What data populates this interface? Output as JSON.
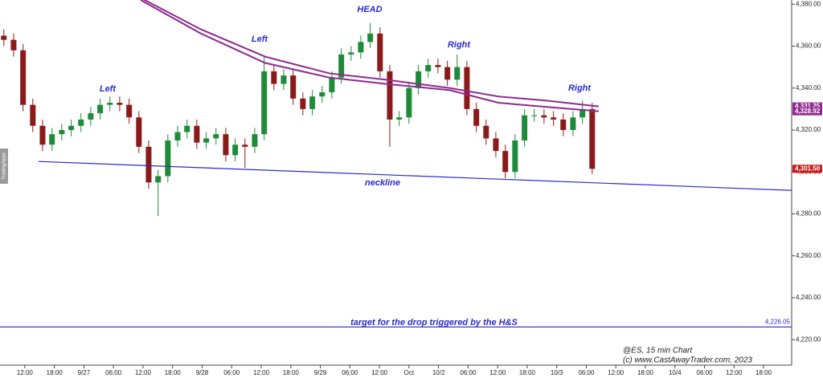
{
  "chart_data": {
    "type": "candlestick",
    "up_color": "#1f8a3a",
    "down_color": "#8b1a1a",
    "xlim": [
      -0.84,
      25.95
    ],
    "ylim": [
      4209,
      4382
    ],
    "xticks": [
      {
        "value": 0,
        "label": "12:00"
      },
      {
        "value": 1,
        "label": "18:00"
      },
      {
        "value": 2,
        "label": "9/27"
      },
      {
        "value": 3,
        "label": "06:00"
      },
      {
        "value": 4,
        "label": "12:00"
      },
      {
        "value": 5,
        "label": "18:00"
      },
      {
        "value": 6,
        "label": "9/28"
      },
      {
        "value": 7,
        "label": "06:00"
      },
      {
        "value": 8,
        "label": "12:00"
      },
      {
        "value": 9,
        "label": "18:00"
      },
      {
        "value": 10,
        "label": "9/29"
      },
      {
        "value": 11,
        "label": "06:00"
      },
      {
        "value": 12,
        "label": "12:00"
      },
      {
        "value": 13,
        "label": "Oct"
      },
      {
        "value": 14,
        "label": "10/2"
      },
      {
        "value": 15,
        "label": "06:00"
      },
      {
        "value": 16,
        "label": "12:00"
      },
      {
        "value": 17,
        "label": "18:00"
      },
      {
        "value": 18,
        "label": "10/3"
      },
      {
        "value": 19,
        "label": "06:00"
      },
      {
        "value": 20,
        "label": "12:00"
      },
      {
        "value": 21,
        "label": "18:00"
      },
      {
        "value": 22,
        "label": "10/4"
      },
      {
        "value": 23,
        "label": "06:00"
      },
      {
        "value": 24,
        "label": "12:00"
      },
      {
        "value": 25,
        "label": "18:00"
      }
    ],
    "yticks": [
      {
        "value": 4380,
        "label": "4,380.00"
      },
      {
        "value": 4360,
        "label": "4,360.00"
      },
      {
        "value": 4340,
        "label": "4,340.00"
      },
      {
        "value": 4320,
        "label": "4,320.00"
      },
      {
        "value": 4300,
        "label": "4,300.00"
      },
      {
        "value": 4280,
        "label": "4,280.00"
      },
      {
        "value": 4260,
        "label": "4,260.00"
      },
      {
        "value": 4240,
        "label": "4,240.00"
      },
      {
        "value": 4220,
        "label": "4,220.00"
      }
    ],
    "x": [
      -0.71,
      -0.38,
      -0.06,
      0.27,
      0.6,
      0.92,
      1.25,
      1.57,
      1.9,
      2.23,
      2.55,
      2.88,
      3.21,
      3.53,
      3.86,
      4.19,
      4.51,
      4.84,
      5.17,
      5.49,
      5.82,
      6.14,
      6.47,
      6.8,
      7.12,
      7.45,
      7.78,
      8.1,
      8.43,
      8.76,
      9.08,
      9.41,
      9.73,
      10.06,
      10.39,
      10.71,
      11.04,
      11.37,
      11.69,
      12.02,
      12.35,
      12.67,
      13.0,
      13.32,
      13.65,
      13.98,
      14.3,
      14.63,
      14.96,
      15.28,
      15.61,
      15.94,
      16.26,
      16.59,
      16.91,
      17.24,
      17.57,
      17.89,
      18.22,
      18.55,
      18.87,
      19.2
    ],
    "open": [
      4365,
      4363,
      4358,
      4332,
      4322,
      4313,
      4318,
      4320,
      4322,
      4325,
      4328,
      4332,
      4333,
      4332,
      4326,
      4312,
      4295,
      4298,
      4315,
      4319,
      4322,
      4314,
      4316,
      4318,
      4308,
      4313,
      4312,
      4318,
      4348,
      4342,
      4346,
      4335,
      4330,
      4336,
      4338,
      4345,
      4356,
      4357,
      4362,
      4366,
      4348,
      4325,
      4326,
      4340,
      4348,
      4351,
      4350,
      4344,
      4350,
      4330,
      4322,
      4316,
      4310,
      4300,
      4315,
      4327,
      4327,
      4326,
      4325,
      4320,
      4326,
      4330
    ],
    "high": [
      4368,
      4366,
      4361,
      4335,
      4325,
      4321,
      4323,
      4325,
      4328,
      4331,
      4335,
      4336,
      4336,
      4335,
      4329,
      4315,
      4301,
      4318,
      4322,
      4325,
      4325,
      4319,
      4321,
      4321,
      4316,
      4316,
      4321,
      4355,
      4351,
      4349,
      4349,
      4338,
      4339,
      4341,
      4348,
      4359,
      4360,
      4365,
      4371,
      4369,
      4351,
      4329,
      4343,
      4351,
      4354,
      4354,
      4353,
      4356,
      4353,
      4333,
      4325,
      4319,
      4313,
      4318,
      4330,
      4330,
      4330,
      4329,
      4328,
      4329,
      4334,
      4333
    ],
    "low": [
      4360,
      4355,
      4329,
      4319,
      4310,
      4310,
      4315,
      4317,
      4319,
      4322,
      4325,
      4329,
      4329,
      4323,
      4309,
      4292,
      4279,
      4295,
      4312,
      4316,
      4311,
      4311,
      4313,
      4305,
      4305,
      4302,
      4309,
      4315,
      4339,
      4339,
      4332,
      4327,
      4327,
      4333,
      4335,
      4342,
      4353,
      4354,
      4359,
      4345,
      4312,
      4322,
      4323,
      4337,
      4345,
      4347,
      4341,
      4341,
      4327,
      4319,
      4313,
      4307,
      4297,
      4297,
      4312,
      4324,
      4323,
      4322,
      4317,
      4317,
      4323,
      4299
    ],
    "close": [
      4363,
      4358,
      4332,
      4322,
      4313,
      4318,
      4320,
      4322,
      4325,
      4328,
      4332,
      4333,
      4332,
      4326,
      4312,
      4295,
      4298,
      4315,
      4319,
      4322,
      4314,
      4316,
      4318,
      4308,
      4313,
      4312,
      4318,
      4348,
      4342,
      4346,
      4335,
      4330,
      4336,
      4338,
      4345,
      4356,
      4357,
      4362,
      4366,
      4348,
      4325,
      4326,
      4340,
      4348,
      4351,
      4350,
      4344,
      4350,
      4330,
      4322,
      4316,
      4310,
      4300,
      4315,
      4327,
      4327,
      4326,
      4325,
      4320,
      4326,
      4330,
      4301.5
    ],
    "lines": [
      {
        "color": "#8e2a8e",
        "x": [
          3.92,
          5.96,
          8.13,
          10.31,
          12.21,
          14.39,
          16.02,
          17.66,
          19.42
        ],
        "values": [
          4383,
          4368,
          4355,
          4347,
          4344,
          4340,
          4336,
          4334,
          4331.25
        ]
      },
      {
        "color": "#8e2a8e",
        "x": [
          3.92,
          5.96,
          8.13,
          10.31,
          12.21,
          14.39,
          16.02,
          17.66,
          19.42
        ],
        "values": [
          4382,
          4366,
          4352,
          4345,
          4342,
          4339,
          4333,
          4331,
          4328.92
        ]
      },
      {
        "color": "#2a2ad0",
        "x": [
          0.46,
          25.95
        ],
        "values": [
          4305,
          4291.2
        ]
      }
    ],
    "target": {
      "value": 4226.05,
      "label": "4,226.05",
      "color": "#2a2ad0"
    },
    "price_tags": [
      {
        "value": 4331.25,
        "label": "4,331.25",
        "color": "#8e2a8e"
      },
      {
        "value": 4328.92,
        "label": "4,328.92",
        "color": "#8e2a8e"
      },
      {
        "value": 4301.5,
        "label": "4,301.50",
        "color": "#cc1a1a"
      }
    ],
    "annotations": [
      "Left",
      "Left",
      "HEAD",
      "Right",
      "Right",
      "neckline",
      "target for the drop triggered by the H&S"
    ],
    "footer": [
      "@ES, 15 min Chart",
      "(c) www.CastAwayTrader.com, 2023"
    ],
    "sidebar_tab": "TradingApps"
  }
}
